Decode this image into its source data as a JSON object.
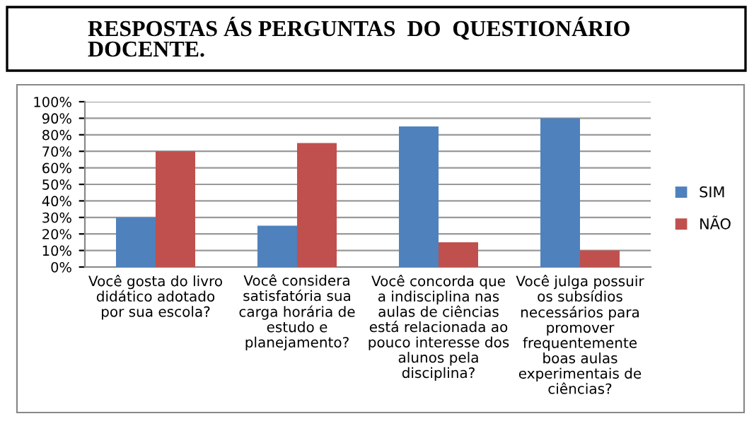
{
  "chart_data": {
    "type": "bar",
    "title": "RESPOSTAS ÁS PERGUNTAS  DO  QUESTIONÁRIO\nDOCENTE.",
    "categories": [
      "Você gosta do livro\ndidático adotado\npor sua escola?",
      "Você considera\nsatisfatória sua\ncarga horária de\nestudo e\nplanejamento?",
      "Você concorda que\na indisciplina nas\naulas de ciências\nestá relacionada ao\npouco interesse dos\nalunos pela\ndisciplina?",
      "Você julga possuir\nos subsídios\nnecessários para\npromover\nfrequentemente\nboas aulas\nexperimentais de\nciências?"
    ],
    "series": [
      {
        "name": "SIM",
        "color": "#4f81bd",
        "values": [
          30,
          25,
          85,
          90
        ]
      },
      {
        "name": "NÃO",
        "color": "#c0504d",
        "values": [
          70,
          75,
          15,
          10
        ]
      }
    ],
    "ylim": [
      0,
      100
    ],
    "yticks": [
      {
        "value": 0,
        "label": "0%"
      },
      {
        "value": 10,
        "label": "10%"
      },
      {
        "value": 20,
        "label": "20%"
      },
      {
        "value": 30,
        "label": "30%"
      },
      {
        "value": 40,
        "label": "40%"
      },
      {
        "value": 50,
        "label": "50%"
      },
      {
        "value": 60,
        "label": "60%"
      },
      {
        "value": 70,
        "label": "70%"
      },
      {
        "value": 80,
        "label": "80%"
      },
      {
        "value": 90,
        "label": "90%"
      },
      {
        "value": 100,
        "label": "100%"
      }
    ],
    "grid": "y",
    "legend": "right"
  }
}
